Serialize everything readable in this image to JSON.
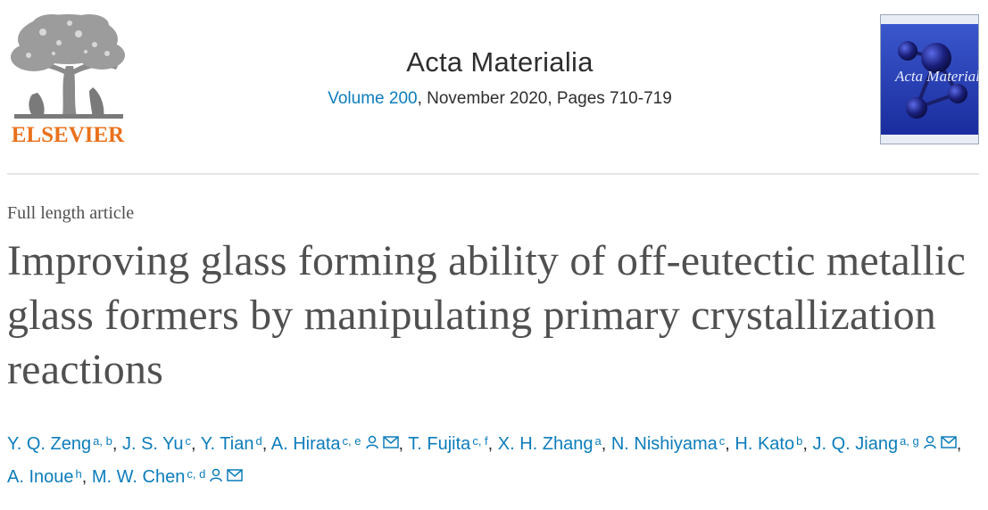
{
  "header": {
    "publisher_logo_text": "ELSEVIER",
    "journal_title": "Acta Materialia",
    "volume_link": "Volume 200",
    "issue_rest": ", November 2020, Pages 710-719",
    "cover_text": "Acta Materialia"
  },
  "article": {
    "type": "Full length article",
    "title": "Improving glass forming ability of off-eutectic metallic glass formers by manipulating primary crystallization reactions"
  },
  "authors": [
    {
      "name": "Y. Q. Zeng",
      "aff": "a, b",
      "sep": ", "
    },
    {
      "name": "J. S. Yu",
      "aff": "c",
      "sep": ", "
    },
    {
      "name": "Y. Tian",
      "aff": "d",
      "sep": ", "
    },
    {
      "name": "A. Hirata",
      "aff": "c, e",
      "sep": ", "
    },
    {
      "name": "T. Fujita",
      "aff": "c, f",
      "sep": ", "
    },
    {
      "name": "X. H. Zhang",
      "aff": "a",
      "sep": ", "
    },
    {
      "name": "N. Nishiyama",
      "aff": "c",
      "sep": ", "
    },
    {
      "name": "H. Kato",
      "aff": "b",
      "sep": ", "
    },
    {
      "name": "J. Q. Jiang",
      "aff": "a, g",
      "sep": ", "
    },
    {
      "name": "A. Inoue",
      "aff": "h",
      "sep": ", "
    },
    {
      "name": "M. W. Chen",
      "aff": "c, d",
      "sep": ""
    }
  ],
  "icons": {
    "person": "person-icon",
    "email": "envelope-icon"
  },
  "colors": {
    "link": "#0c7dbb",
    "publisher_orange": "#e9711c",
    "title_gray": "#505050"
  }
}
